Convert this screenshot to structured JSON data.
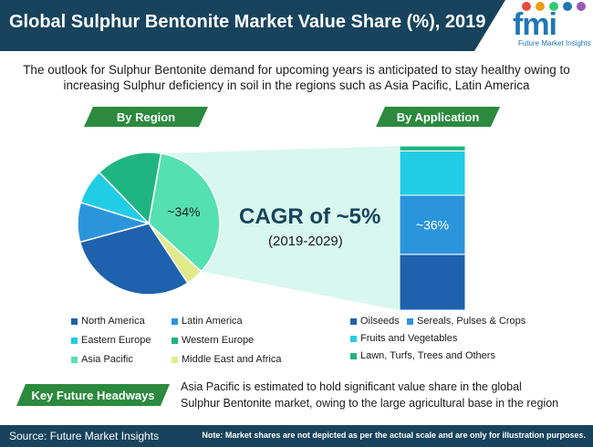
{
  "header": {
    "title": "Global Sulphur Bentonite Market Value Share (%), 2019"
  },
  "logo": {
    "mark": "fmi",
    "text": "Future Market Insights",
    "dot_colors": [
      "#e74c3c",
      "#f39c12",
      "#2ecc71",
      "#1f76b6",
      "#9b59b6"
    ]
  },
  "subtitle": "The outlook for Sulphur Bentonite demand for upcoming years is anticipated to stay healthy owing to increasing Sulphur deficiency in soil in the regions such as Asia Pacific, Latin America",
  "labels": {
    "by_region": "By Region",
    "by_application": "By Application"
  },
  "cagr": {
    "value": "CAGR of ~5%",
    "period": "(2019-2029)"
  },
  "colors": {
    "header": "#17435d",
    "accent_green": "#2b8a3e",
    "highlight_fill": "#b8f0e0"
  },
  "chart_data": [
    {
      "type": "pie",
      "title": "By Region",
      "slices": [
        {
          "label": "Asia Pacific",
          "value": 34,
          "color": "#55e0b2",
          "data_label": "~34%"
        },
        {
          "label": "Middle East and Africa",
          "value": 4,
          "color": "#e1ea8a",
          "data_label": ""
        },
        {
          "label": "North America",
          "value": 30,
          "color": "#1e62ad",
          "data_label": ""
        },
        {
          "label": "Latin America",
          "value": 9,
          "color": "#2b95dc",
          "data_label": ""
        },
        {
          "label": "Eastern Europe",
          "value": 8,
          "color": "#21cde5",
          "data_label": ""
        },
        {
          "label": "Western Europe",
          "value": 15,
          "color": "#1fb582",
          "data_label": ""
        }
      ],
      "legend": [
        {
          "label": "North America",
          "color": "#1e62ad"
        },
        {
          "label": "Latin America",
          "color": "#2b95dc"
        },
        {
          "label": "Eastern Europe",
          "color": "#21cde5"
        },
        {
          "label": "Western Europe",
          "color": "#1fb582"
        },
        {
          "label": "Asia Pacific",
          "color": "#55e0b2"
        },
        {
          "label": "Middle East and Africa",
          "color": "#e1ea8a"
        }
      ]
    },
    {
      "type": "bar",
      "subtype": "stacked-100",
      "title": "By Application",
      "segments": [
        {
          "label": "Oilseeds",
          "value": 34,
          "color": "#1e62ad",
          "data_label": ""
        },
        {
          "label": "Sereals, Pulses & Crops",
          "value": 36,
          "color": "#2b95dc",
          "data_label": "~36%"
        },
        {
          "label": "Fruits and Vegetables",
          "value": 27,
          "color": "#21cde5",
          "data_label": ""
        },
        {
          "label": "Lawn, Turfs, Trees and Others",
          "value": 3,
          "color": "#1fb582",
          "data_label": ""
        }
      ],
      "legend": [
        {
          "label": "Oilseeds",
          "color": "#1e62ad"
        },
        {
          "label": "Sereals, Pulses & Crops",
          "color": "#2b95dc"
        },
        {
          "label": "Fruits and Vegetables",
          "color": "#21cde5"
        },
        {
          "label": "Lawn, Turfs, Trees and Others",
          "color": "#1fb582"
        }
      ]
    }
  ],
  "key_headways": {
    "label": "Key Future Headways",
    "text": "Asia Pacific is estimated to hold significant value share in the global Sulphur Bentonite market, owing to the large agricultural base in the region"
  },
  "footer": {
    "source": "Source: Future Market Insights",
    "note": "Note: Market shares are not depicted as per the actual scale and are only for illustration purposes."
  }
}
